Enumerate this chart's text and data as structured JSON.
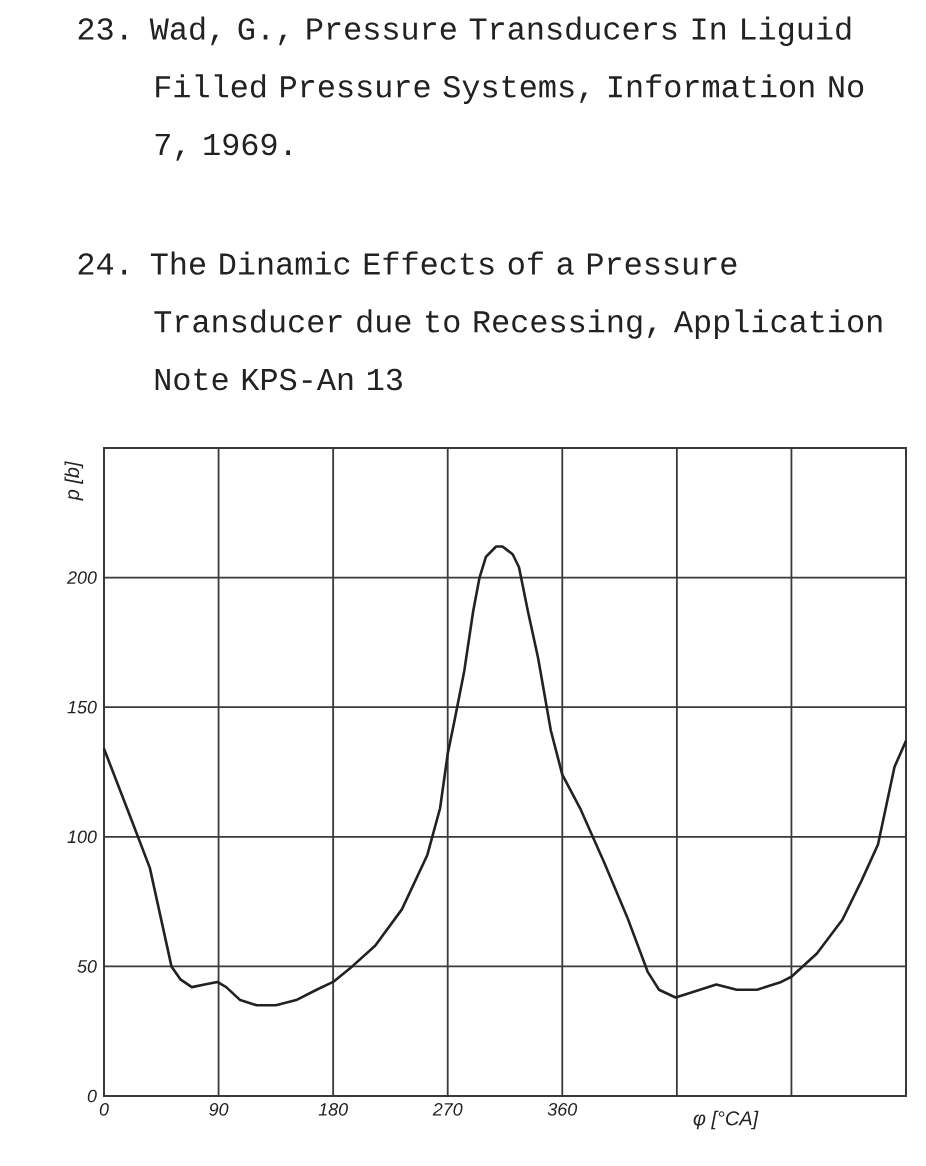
{
  "chart_data": {
    "type": "line",
    "xlabel": "φ [°CA]",
    "ylabel": "p [b]",
    "annotations": [
      "23. Wad, G., Pressure Transducers In Liguid Filled Pressure Systems, Information No 7, 1969.",
      "24. The Dinamic Effects of a Pressure Transducer due to Recessing, Application Note KPS-An 13"
    ],
    "x": [
      0,
      22,
      36,
      53,
      60,
      69,
      79,
      89,
      96,
      107,
      120,
      135,
      151,
      167,
      180,
      195,
      213,
      234,
      254,
      264,
      270,
      275,
      283,
      290,
      295,
      300,
      308,
      313,
      321,
      326,
      333,
      341,
      351,
      360,
      374,
      393,
      411,
      427,
      436,
      449,
      462,
      481,
      497,
      513,
      532,
      540,
      560,
      580,
      595,
      608,
      621,
      630
    ],
    "values": [
      134,
      106,
      88,
      50,
      45,
      42,
      43,
      44,
      42,
      37,
      35,
      35,
      37,
      41,
      44,
      50,
      58,
      72,
      93,
      111,
      132,
      144,
      164,
      187,
      200,
      208,
      212,
      212,
      209,
      204,
      187,
      169,
      141,
      124,
      111,
      90,
      69,
      48,
      41,
      38,
      40,
      43,
      41,
      41,
      44,
      46,
      55,
      68,
      83,
      97,
      127,
      137
    ],
    "color": "#222222",
    "line_style": "solid",
    "xlim": [
      0,
      630
    ],
    "ylim": [
      0,
      250
    ],
    "xticks": [
      0,
      90,
      180,
      270,
      360,
      {
        "value": 450,
        "label": null
      },
      {
        "value": 540,
        "label": null
      }
    ],
    "yticks": [
      0,
      50,
      100,
      150,
      200
    ],
    "grid": true
  }
}
